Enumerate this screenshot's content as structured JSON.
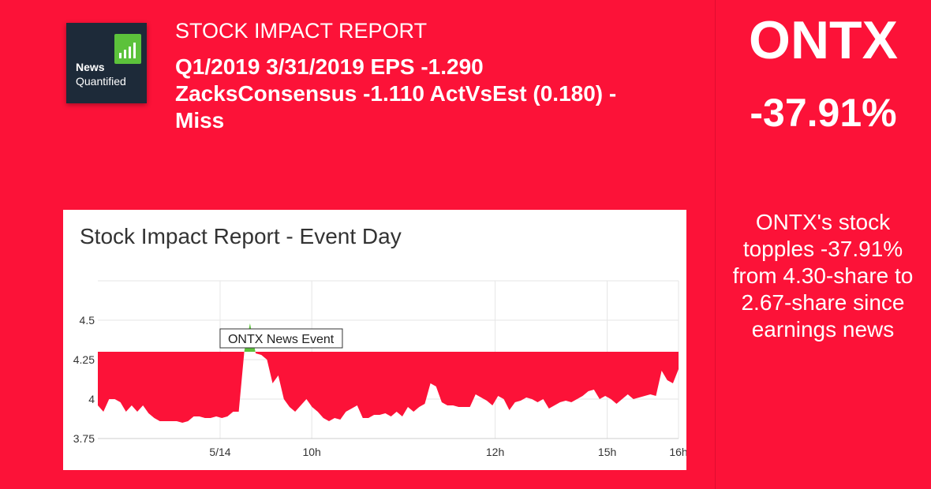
{
  "logo": {
    "line1": "News",
    "line2": "Quantified"
  },
  "header": {
    "report_label": "STOCK IMPACT REPORT",
    "headline": "Q1/2019 3/31/2019 EPS -1.290 ZacksConsensus -1.110 ActVsEst (0.180) - Miss"
  },
  "sidebar": {
    "ticker": "ONTX",
    "change": "-37.91%",
    "summary": "ONTX's stock topples -37.91% from 4.30-share to 2.67-share since earnings news"
  },
  "colors": {
    "background": "#fc1238",
    "fill_down": "#fc1238",
    "fill_up": "#5cc23b"
  },
  "chart_data": {
    "type": "area",
    "title": "Stock Impact Report - Event Day",
    "baseline": 4.3,
    "y_ticks": [
      3.75,
      4,
      4.25,
      4.5
    ],
    "ylim": [
      3.75,
      4.5
    ],
    "x_tick_labels": [
      "5/14",
      "10h",
      "12h",
      "15h",
      "16h"
    ],
    "x_tick_positions": [
      12,
      21,
      39,
      50,
      57
    ],
    "x_range": [
      0,
      57
    ],
    "annotation": {
      "text": "ONTX News Event",
      "x": 12
    },
    "grid": true,
    "legend": "none",
    "series": [
      {
        "values": [
          3.96,
          3.92,
          4.0,
          4.0,
          3.98,
          3.92,
          3.96,
          3.92,
          3.96,
          3.91,
          3.88,
          3.86,
          3.86,
          3.86,
          3.86,
          3.85,
          3.86,
          3.89,
          3.89,
          3.88,
          3.88,
          3.89,
          3.88,
          3.89,
          3.92,
          3.92,
          4.31,
          4.48,
          4.29,
          4.28,
          4.25,
          4.1,
          4.15,
          4.0,
          3.95,
          3.92,
          3.96,
          4.0,
          3.95,
          3.92,
          3.88,
          3.86,
          3.88,
          3.87,
          3.92,
          3.94,
          3.96,
          3.88,
          3.88,
          3.9,
          3.9,
          3.91,
          3.89,
          3.92,
          3.89,
          3.95,
          3.92,
          3.95,
          3.97,
          4.1,
          4.08,
          3.98,
          3.96,
          3.96,
          3.95,
          3.95,
          3.95,
          4.03,
          4.01,
          3.99,
          3.96,
          4.02,
          4.0,
          3.93,
          3.98,
          3.99,
          4.01,
          4.0,
          3.98,
          4.0,
          3.94,
          3.96,
          3.98,
          3.99,
          3.98,
          4.0,
          4.02,
          4.05,
          4.06,
          4.0,
          4.02,
          4.0,
          3.97,
          4.0,
          4.03,
          4.0,
          4.01,
          4.02,
          4.03,
          4.02,
          4.18,
          4.12,
          4.1,
          4.19
        ]
      }
    ]
  }
}
